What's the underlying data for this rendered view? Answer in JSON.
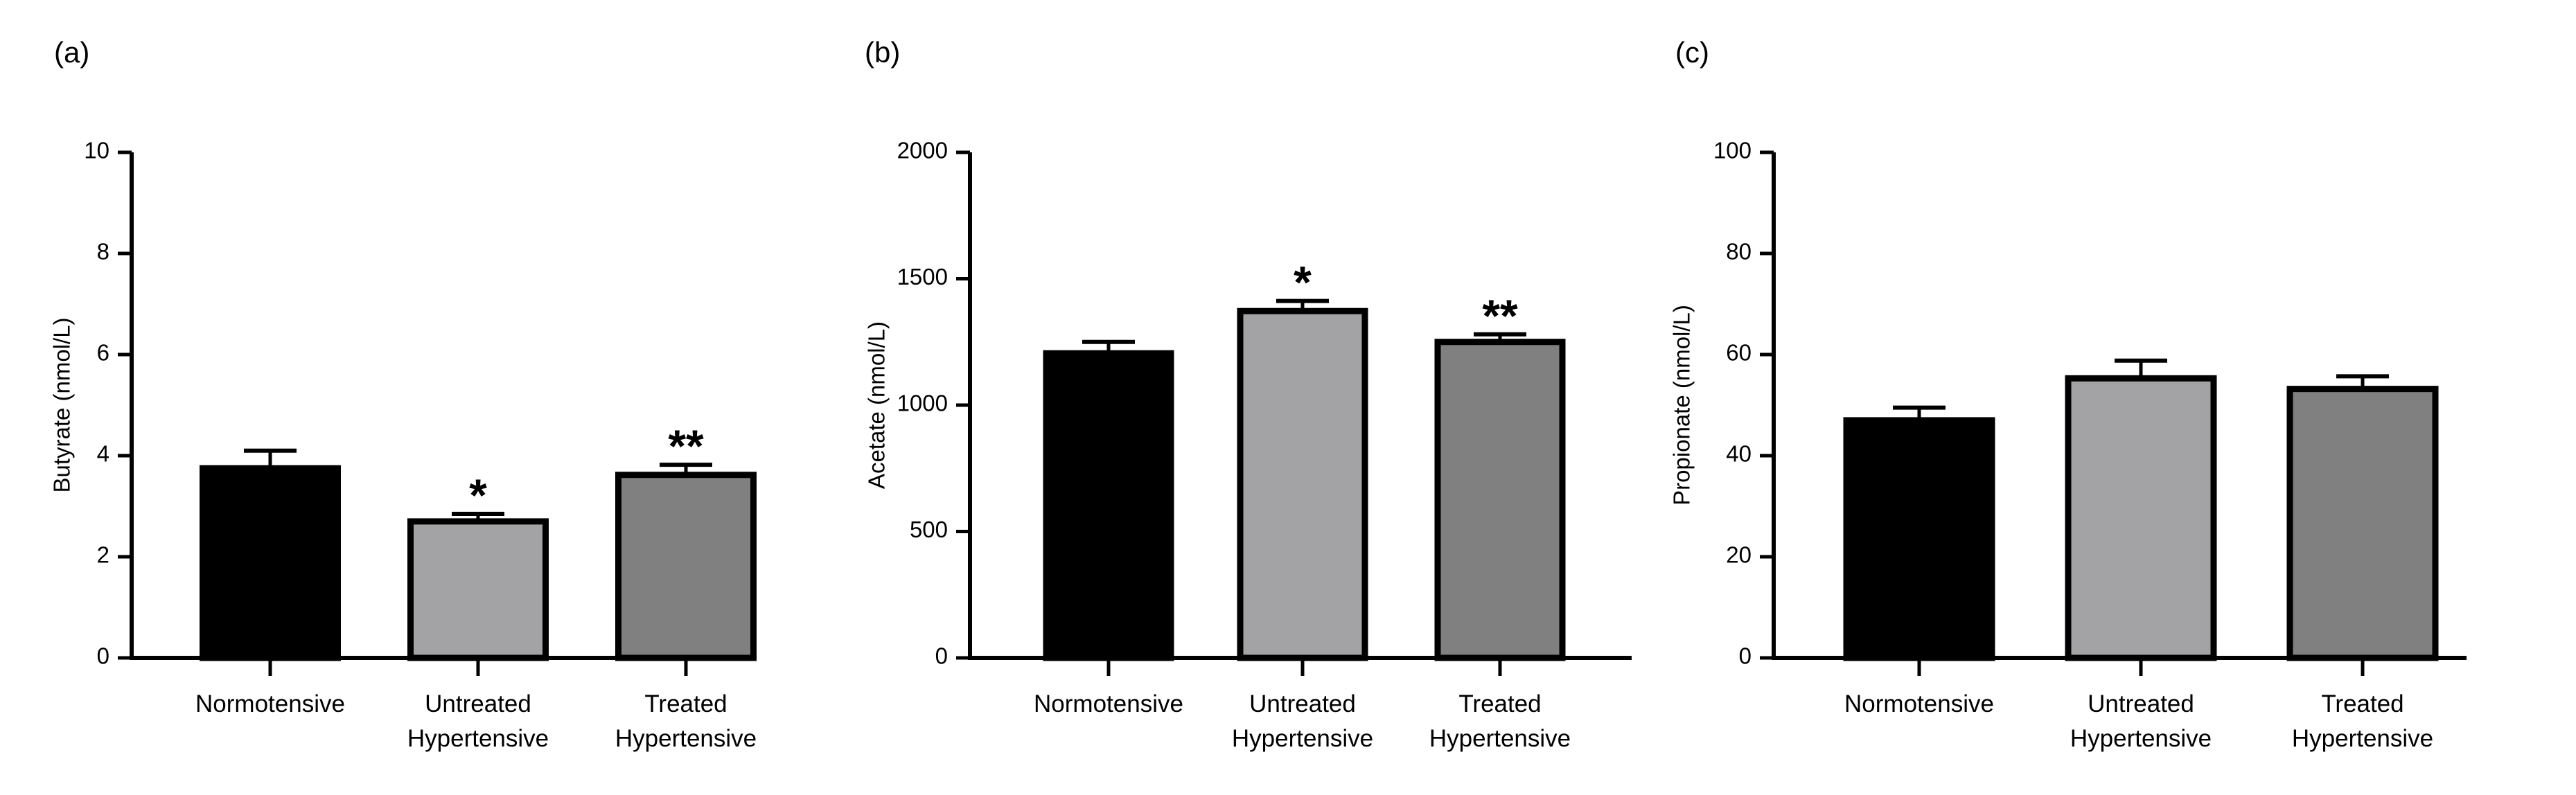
{
  "chart_data": [
    {
      "type": "bar",
      "panel_label": "(a)",
      "title": "",
      "xlabel": "",
      "ylabel": "Butyrate (nmol/L)",
      "ylim": [
        0,
        10
      ],
      "yticks": [
        "0",
        "2",
        "4",
        "6",
        "8",
        "10"
      ],
      "categories": [
        [
          "Normotensive"
        ],
        [
          "Untreated",
          "Hypertensive"
        ],
        [
          "Treated",
          "Hypertensive"
        ]
      ],
      "values": [
        3.75,
        2.7,
        3.62
      ],
      "errors": [
        0.35,
        0.15,
        0.2
      ],
      "colors": [
        "#000000",
        "#a3a3a5",
        "#808080"
      ],
      "annotations": [
        "",
        "*",
        "**"
      ],
      "grid": false
    },
    {
      "type": "bar",
      "panel_label": "(b)",
      "title": "",
      "xlabel": "",
      "ylabel": "Acetate (nmol/L)",
      "ylim": [
        0,
        2000
      ],
      "yticks": [
        "0",
        "500",
        "1000",
        "1500",
        "2000"
      ],
      "categories": [
        [
          "Normotensive"
        ],
        [
          "Untreated",
          "Hypertensive"
        ],
        [
          "Treated",
          "Hypertensive"
        ]
      ],
      "values": [
        1205,
        1372,
        1250
      ],
      "errors": [
        45,
        40,
        30
      ],
      "colors": [
        "#000000",
        "#a3a3a5",
        "#808080"
      ],
      "annotations": [
        "",
        "*",
        "**"
      ],
      "grid": false
    },
    {
      "type": "bar",
      "panel_label": "(c)",
      "title": "",
      "xlabel": "",
      "ylabel": "Propionate (nmol/L)",
      "ylim": [
        0,
        100
      ],
      "yticks": [
        "0",
        "20",
        "40",
        "60",
        "80",
        "100"
      ],
      "categories": [
        [
          "Normotensive"
        ],
        [
          "Untreated",
          "Hypertensive"
        ],
        [
          "Treated",
          "Hypertensive"
        ]
      ],
      "values": [
        47,
        55.3,
        53.2
      ],
      "errors": [
        2.5,
        3.5,
        2.5
      ],
      "colors": [
        "#000000",
        "#a3a3a5",
        "#808080"
      ],
      "annotations": [
        "",
        "",
        ""
      ],
      "grid": false
    }
  ]
}
